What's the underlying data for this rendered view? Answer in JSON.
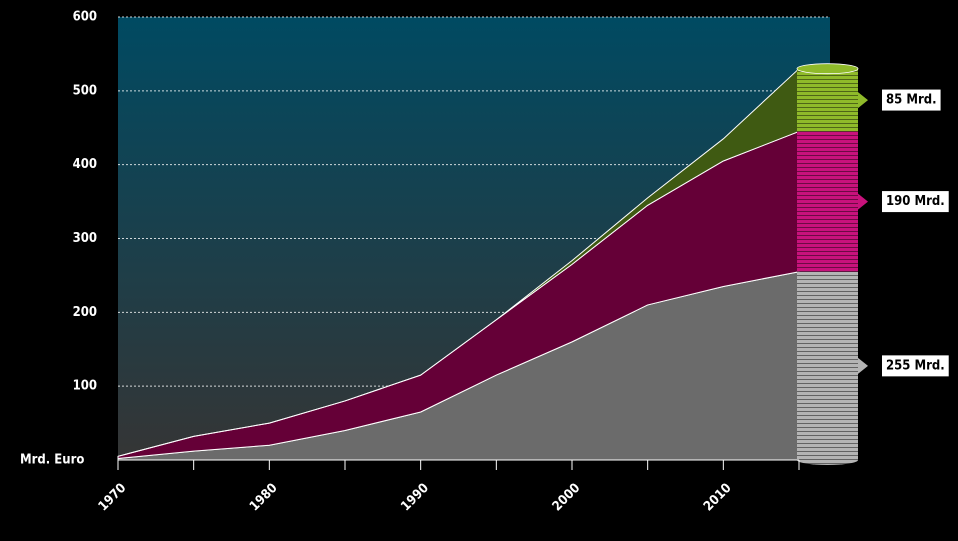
{
  "chart_data": {
    "type": "stacked-area",
    "x": [
      1970,
      1975,
      1980,
      1985,
      1990,
      1995,
      2000,
      2005,
      2010,
      2015
    ],
    "xlim": [
      1970,
      2015
    ],
    "xticks": [
      1970,
      1980,
      1990,
      2000,
      2010
    ],
    "xminor_ticks": [
      1975,
      1985,
      1995,
      2005,
      2015
    ],
    "ylim": [
      0,
      600
    ],
    "yticks": [
      100,
      200,
      300,
      400,
      500,
      600
    ],
    "y_label": "Mrd. Euro",
    "grid": true,
    "series": [
      {
        "color": "#6b6b6b",
        "cylinder_color": "#b4b4b4",
        "values": [
          2,
          12,
          20,
          40,
          65,
          115,
          160,
          210,
          235,
          255
        ],
        "value_labels": [
          null,
          null,
          null,
          null,
          null,
          null,
          null,
          null,
          null,
          "255 Mrd."
        ]
      },
      {
        "color": "#650037",
        "cylinder_color": "#c8127c",
        "values": [
          3,
          20,
          30,
          40,
          50,
          75,
          105,
          135,
          170,
          190
        ],
        "value_labels": [
          null,
          null,
          null,
          null,
          null,
          null,
          null,
          null,
          null,
          "190 Mrd."
        ]
      },
      {
        "color": "#3f5a12",
        "cylinder_color": "#8fba2a",
        "values": [
          0,
          0,
          0,
          0,
          0,
          0,
          5,
          10,
          30,
          85
        ],
        "value_labels": [
          null,
          null,
          null,
          null,
          null,
          null,
          null,
          null,
          null,
          "85 Mrd."
        ]
      }
    ]
  }
}
